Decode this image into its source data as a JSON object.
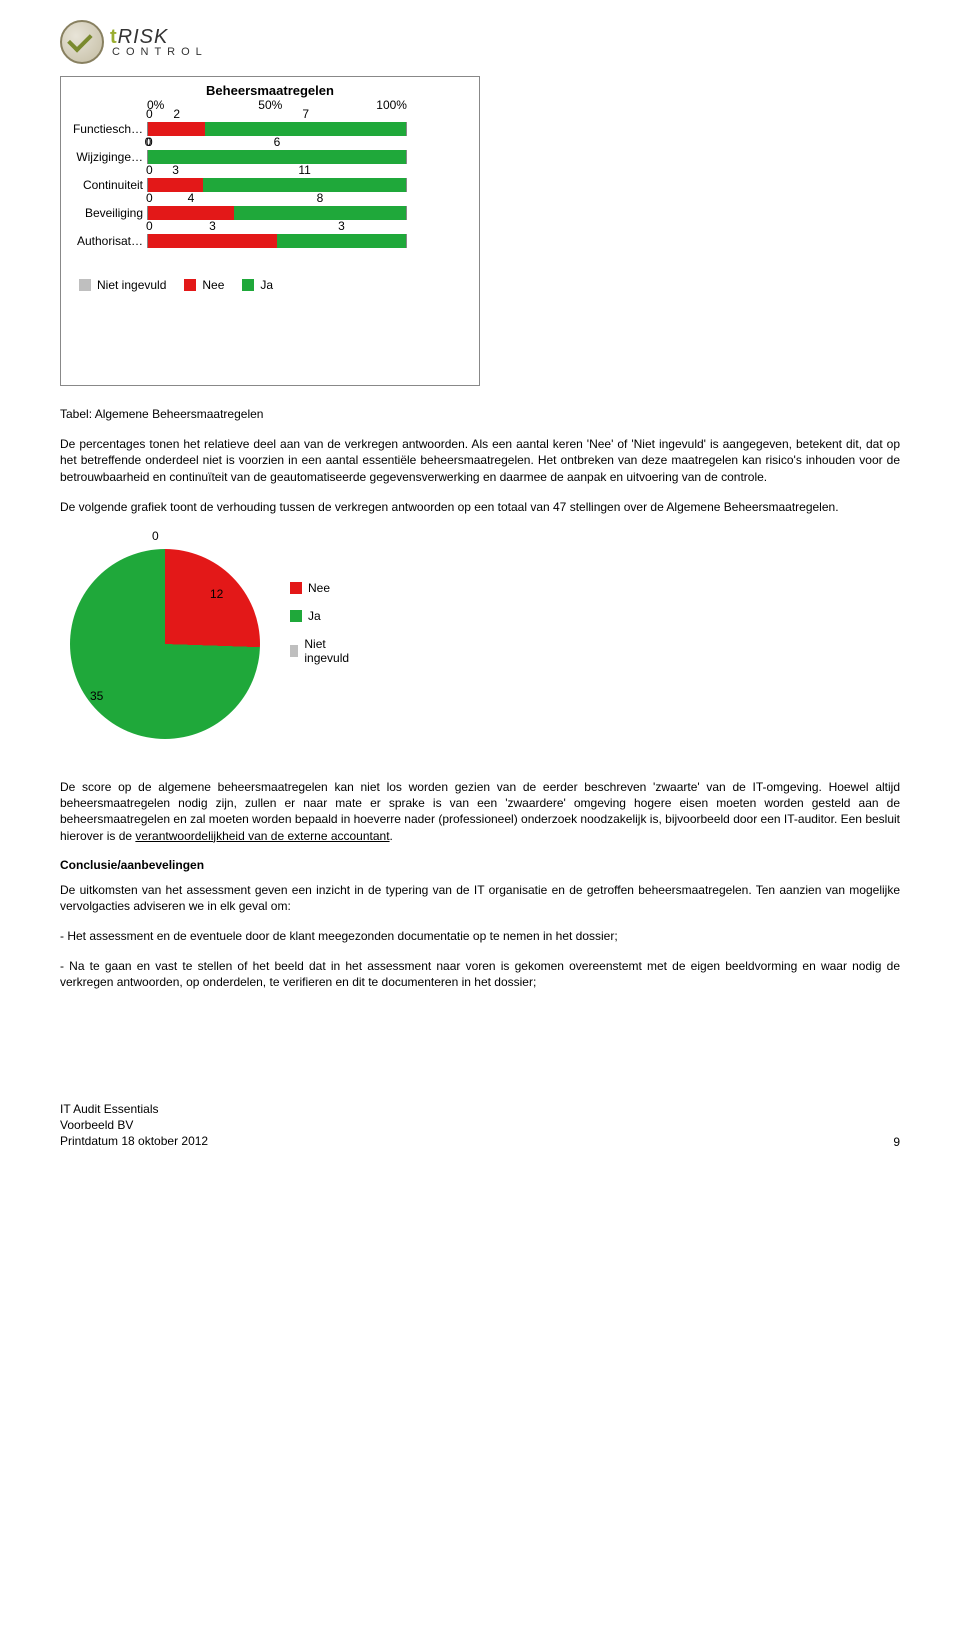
{
  "brand": {
    "top_accent": "t",
    "top_rest": "RISK",
    "sub": "CONTROL"
  },
  "bar_chart": {
    "title": "Beheersmaatregelen",
    "ticks": [
      "0%",
      "50%",
      "100%"
    ],
    "categories": [
      {
        "label": "Functiesch…",
        "ni": 0,
        "nee": 2,
        "ja": 7
      },
      {
        "label": "Wijziginge…",
        "ni": 0,
        "nee": 0,
        "ja": 6
      },
      {
        "label": "Continuiteit",
        "ni": 0,
        "nee": 3,
        "ja": 11
      },
      {
        "label": "Beveiliging",
        "ni": 0,
        "nee": 4,
        "ja": 8
      },
      {
        "label": "Authorisat…",
        "ni": 0,
        "nee": 3,
        "ja": 3
      }
    ],
    "colors": {
      "ni": "#bfbfbf",
      "nee": "#e31818",
      "ja": "#1fa83a"
    },
    "legend": {
      "ni": "Niet ingevuld",
      "nee": "Nee",
      "ja": "Ja"
    }
  },
  "caption1": "Tabel: Algemene Beheersmaatregelen",
  "para1": "De percentages tonen het relatieve deel aan van de verkregen antwoorden. Als een aantal  keren 'Nee' of 'Niet ingevuld' is aangegeven, betekent dit, dat op het betreffende onderdeel niet is voorzien in een aantal essentiële beheersmaatregelen. Het ontbreken van deze maatregelen kan risico's inhouden voor de betrouwbaarheid en continuïteit van de geautomatiseerde gegevensverwerking en daarmee de aanpak en uitvoering van de controle.",
  "para2": "De volgende grafiek toont de verhouding tussen de verkregen antwoorden op een totaal van 47 stellingen over de Algemene Beheersmaatregelen.",
  "pie": {
    "values": {
      "ni": 0,
      "nee": 12,
      "ja": 35
    },
    "colors": {
      "ni": "#bfbfbf",
      "nee": "#e31818",
      "ja": "#1fa83a"
    },
    "legend": {
      "nee": "Nee",
      "ja": "Ja",
      "ni": "Niet ingevuld"
    },
    "background": "#ffffff"
  },
  "para3a": "De  score op de algemene beheersmaatregelen kan niet los worden gezien van de eerder beschreven 'zwaarte' van de IT-omgeving. Hoewel altijd beheersmaatregelen nodig zijn, zullen er naar mate er sprake is van een 'zwaardere' omgeving hogere eisen moeten worden gesteld aan de beheersmaatregelen en zal moeten worden bepaald in hoeverre nader (professioneel) onderzoek noodzakelijk is, bijvoorbeeld door een IT-auditor. Een besluit hierover is de ",
  "para3_underlined": "verantwoordelijkheid van de externe accountant",
  "para3b": ".",
  "subhead": "Conclusie/aanbevelingen",
  "para4": "De uitkomsten van het assessment geven een inzicht in de typering van de IT organisatie en de getroffen beheersmaatregelen. Ten aanzien van mogelijke vervolgacties adviseren we in elk geval om:",
  "bullet1": "- Het assessment en de eventuele door de klant meegezonden documentatie op te nemen in het dossier;",
  "bullet2": "- Na te gaan en vast te stellen of het beeld dat in het assessment naar voren is gekomen overeenstemt met de eigen beeldvorming en waar nodig de verkregen antwoorden, op onderdelen, te verifieren en dit te documenteren in het dossier;",
  "footer": {
    "line1": "IT Audit Essentials",
    "line2": "Voorbeeld BV",
    "line3": "Printdatum 18 oktober 2012",
    "page": "9"
  }
}
